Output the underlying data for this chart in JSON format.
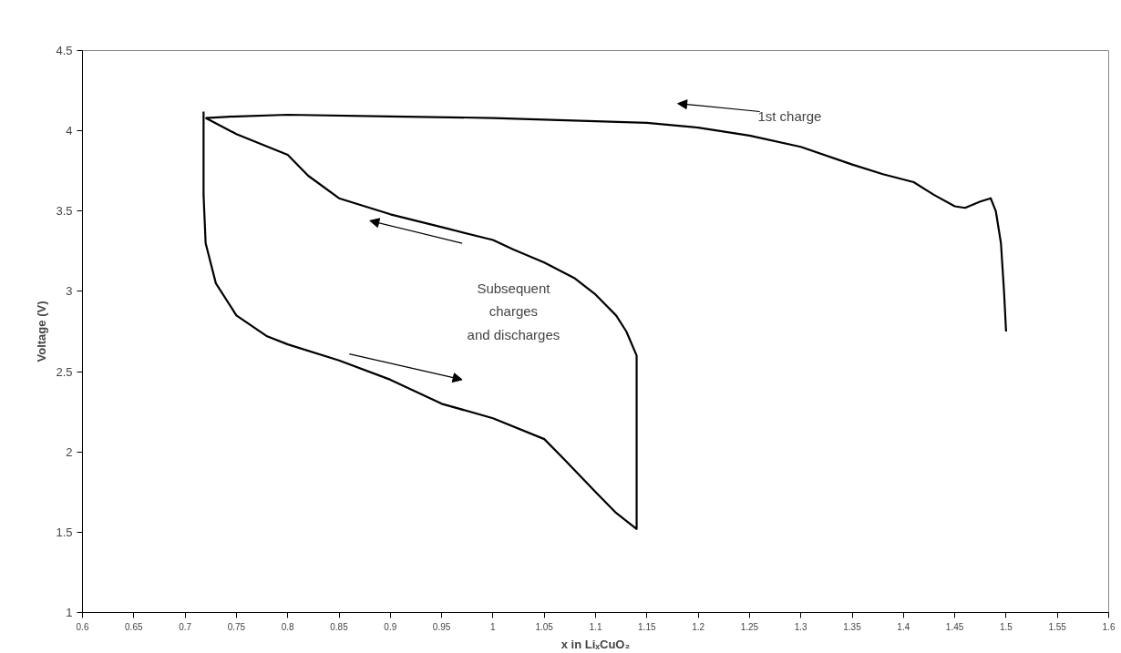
{
  "chart_data": {
    "type": "line",
    "xlabel": "x in LiₓCuO₂",
    "ylabel": "Voltage (V)",
    "xlim": [
      0.6,
      1.6
    ],
    "ylim": [
      1,
      4.5
    ],
    "xticks": [
      0.6,
      0.65,
      0.7,
      0.75,
      0.8,
      0.85,
      0.9,
      0.95,
      1,
      1.05,
      1.1,
      1.15,
      1.2,
      1.25,
      1.3,
      1.35,
      1.4,
      1.45,
      1.5,
      1.55,
      1.6
    ],
    "yticks": [
      1,
      1.5,
      2,
      2.5,
      3,
      3.5,
      4,
      4.5
    ],
    "grid": false,
    "marker": "none",
    "line_style": "solid",
    "annotations": [
      "1st charge",
      "Subsequent\ncharges\nand discharges"
    ],
    "series": [
      {
        "color": "#000000",
        "x": [
          1.5,
          1.498,
          1.495,
          1.49,
          1.485,
          1.475,
          1.46,
          1.45,
          1.43,
          1.41,
          1.38,
          1.35,
          1.3,
          1.25,
          1.2,
          1.15,
          1.1,
          1.0,
          0.9,
          0.8,
          0.75,
          0.72
        ],
        "values": [
          2.75,
          3.0,
          3.3,
          3.5,
          3.58,
          3.56,
          3.52,
          3.53,
          3.6,
          3.68,
          3.73,
          3.79,
          3.9,
          3.97,
          4.02,
          4.05,
          4.06,
          4.08,
          4.09,
          4.1,
          4.09,
          4.08
        ]
      },
      {
        "color": "#000000",
        "x": [
          0.718,
          0.718,
          0.72,
          0.73,
          0.75,
          0.78,
          0.8,
          0.85,
          0.9,
          0.95,
          1.0,
          1.05,
          1.07,
          1.1,
          1.12,
          1.14,
          1.14,
          1.14,
          1.13,
          1.12,
          1.1,
          1.08,
          1.05,
          1.02,
          1.0,
          0.95,
          0.9,
          0.85,
          0.82,
          0.8,
          0.75,
          0.72
        ],
        "values": [
          4.12,
          3.6,
          3.3,
          3.05,
          2.85,
          2.72,
          2.67,
          2.57,
          2.45,
          2.3,
          2.21,
          2.08,
          1.95,
          1.75,
          1.62,
          1.52,
          2.0,
          2.6,
          2.75,
          2.85,
          2.98,
          3.08,
          3.18,
          3.26,
          3.32,
          3.4,
          3.48,
          3.58,
          3.72,
          3.85,
          3.98,
          4.08
        ]
      }
    ]
  }
}
